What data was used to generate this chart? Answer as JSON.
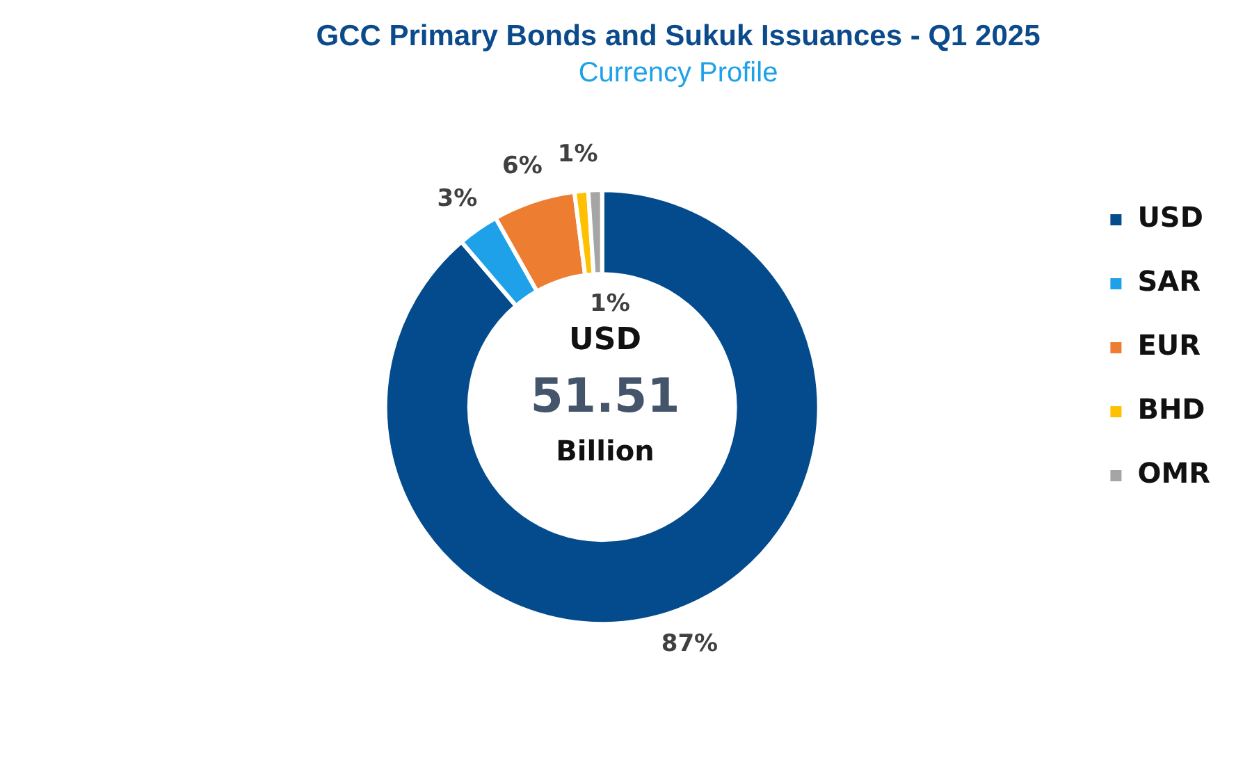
{
  "chart_data": {
    "type": "donut",
    "title": "GCC Primary Bonds and Sukuk Issuances - Q1 2025",
    "subtitle": "Currency Profile",
    "categories": [
      "USD",
      "SAR",
      "EUR",
      "BHD",
      "OMR"
    ],
    "values": [
      87,
      3,
      6,
      1,
      1
    ],
    "value_labels": [
      "87%",
      "3%",
      "6%",
      "1%",
      "1%"
    ],
    "colors": [
      "#034b8c",
      "#1ea1e8",
      "#ed7d31",
      "#ffc000",
      "#a5a5a5"
    ],
    "legend": "right",
    "annotations": [
      "USD",
      "51.51",
      "Billion"
    ]
  }
}
